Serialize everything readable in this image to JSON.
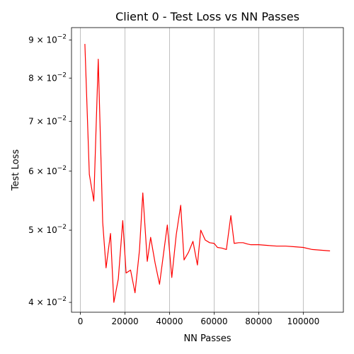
{
  "chart_data": {
    "type": "line",
    "title": "Client 0 - Test Loss vs NN Passes",
    "xlabel": "NN Passes",
    "ylabel": "Test Loss",
    "yscale": "log",
    "xlim": [
      -4000,
      118000
    ],
    "ylim": [
      0.0388,
      0.0935
    ],
    "grid": "vertical",
    "x_ticks": [
      0,
      20000,
      40000,
      60000,
      80000,
      100000
    ],
    "x_tick_labels": [
      "0",
      "20000",
      "40000",
      "60000",
      "80000",
      "100000"
    ],
    "y_ticks": [
      0.04,
      0.05,
      0.06,
      0.07,
      0.08,
      0.09
    ],
    "y_tick_labels": [
      {
        "mantissa": "4",
        "base": "10",
        "exp": "−2"
      },
      {
        "mantissa": "5",
        "base": "10",
        "exp": "−2"
      },
      {
        "mantissa": "6",
        "base": "10",
        "exp": "−2"
      },
      {
        "mantissa": "7",
        "base": "10",
        "exp": "−2"
      },
      {
        "mantissa": "8",
        "base": "10",
        "exp": "−2"
      },
      {
        "mantissa": "9",
        "base": "10",
        "exp": "−2"
      }
    ],
    "series": [
      {
        "color": "#ff0000",
        "x": [
          2000,
          4000,
          6000,
          8000,
          10000,
          11500,
          13500,
          15000,
          17000,
          19000,
          20500,
          22500,
          24500,
          26500,
          28000,
          30000,
          31500,
          33500,
          35500,
          37500,
          39000,
          41000,
          43000,
          45000,
          46500,
          48500,
          50500,
          52500,
          54000,
          56000,
          58000,
          60000,
          61500,
          63500,
          65500,
          67500,
          69000,
          71000,
          73000,
          75000,
          76500,
          80000,
          84000,
          88000,
          92000,
          96000,
          100000,
          104000,
          108000,
          112000
        ],
        "y": [
          0.0889,
          0.0594,
          0.0547,
          0.0848,
          0.0512,
          0.0445,
          0.0495,
          0.04,
          0.043,
          0.0515,
          0.0438,
          0.0442,
          0.0412,
          0.047,
          0.0561,
          0.0454,
          0.0489,
          0.0452,
          0.0423,
          0.047,
          0.0508,
          0.0432,
          0.0493,
          0.054,
          0.0456,
          0.0467,
          0.0483,
          0.0449,
          0.05,
          0.0485,
          0.0481,
          0.048,
          0.0474,
          0.0473,
          0.0471,
          0.0523,
          0.048,
          0.0481,
          0.0481,
          0.0479,
          0.0478,
          0.0478,
          0.0477,
          0.0476,
          0.0476,
          0.0475,
          0.0474,
          0.0471,
          0.047,
          0.0469
        ]
      }
    ]
  }
}
